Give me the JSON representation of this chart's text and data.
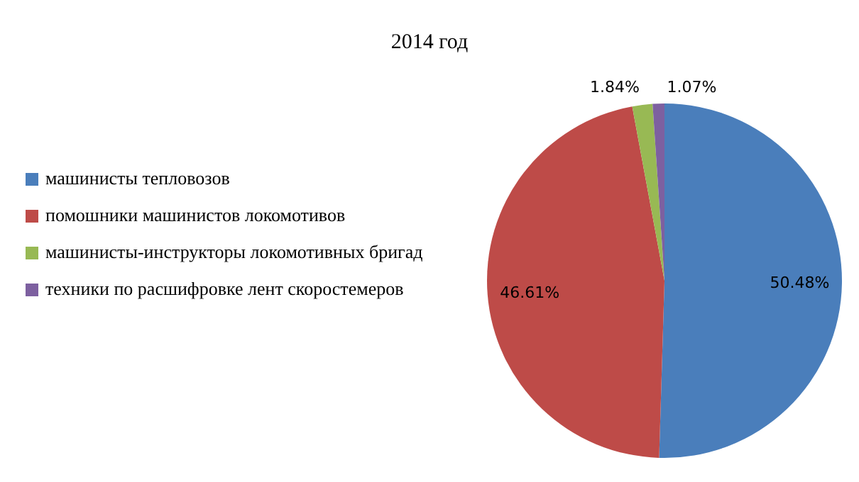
{
  "chart_data": {
    "type": "pie",
    "title": "2014 год",
    "categories": [
      "машинисты тепловозов",
      "помошники машинистов локомотивов",
      "машинисты-инструкторы локомотивных бригад",
      "техники по расшифровке лент скоростемеров"
    ],
    "values": [
      50.48,
      46.61,
      1.84,
      1.07
    ],
    "colors": [
      "#4a7ebb",
      "#be4b48",
      "#98b954",
      "#7d60a0"
    ],
    "value_labels": [
      "50.48%",
      "46.61%",
      "1.84%",
      "1.07%"
    ],
    "legend": "left"
  }
}
